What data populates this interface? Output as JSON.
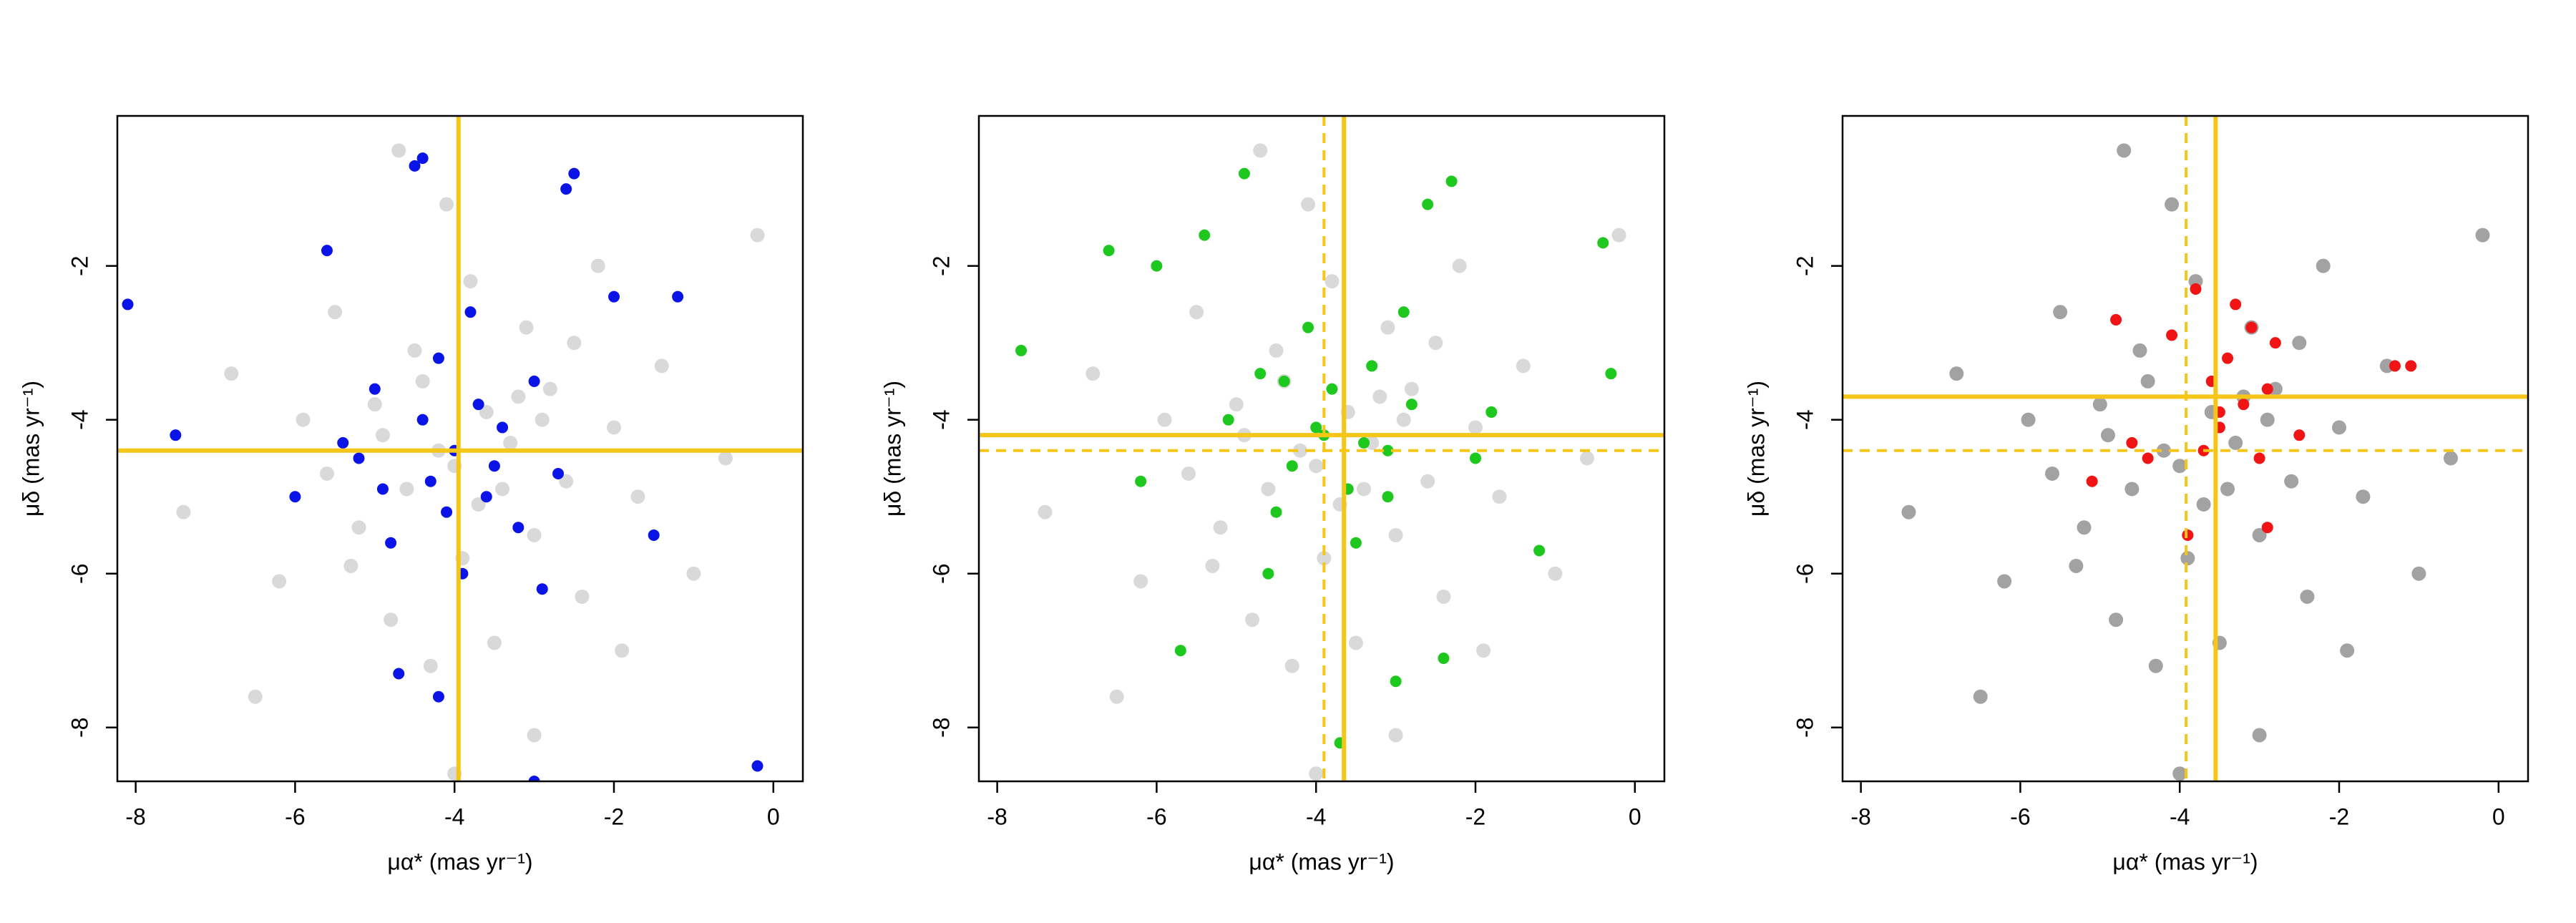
{
  "chart_data": [
    {
      "type": "scatter",
      "xlabel": "μα* (mas yr⁻¹)",
      "ylabel": "μδ (mas yr⁻¹)",
      "xlim": [
        -8.23,
        0.37
      ],
      "ylim": [
        -8.7,
        -0.05
      ],
      "xticks": [
        -8,
        -6,
        -4,
        -2,
        0
      ],
      "yticks": [
        -8,
        -6,
        -4,
        -2
      ],
      "series": [
        {
          "color": "#808080",
          "opacity": 0.3,
          "x": [
            -7.4,
            -6.8,
            -6.2,
            -5.9,
            -5.5,
            -5.2,
            -5.0,
            -4.8,
            -4.6,
            -4.5,
            -4.3,
            -4.1,
            -4.0,
            -3.9,
            -3.8,
            -3.6,
            -3.5,
            -3.3,
            -3.1,
            -3.0,
            -2.8,
            -2.6,
            -2.4,
            -2.2,
            -2.0,
            -1.7,
            -1.4,
            -1.0,
            -0.6,
            -0.2,
            -5.6,
            -4.9,
            -4.4,
            -3.7,
            -3.2,
            -2.9,
            -4.2,
            -3.4,
            -5.3,
            -2.5,
            -6.5,
            -1.9,
            -4.7,
            -3.0,
            -4.0
          ],
          "y": [
            -5.2,
            -3.4,
            -6.1,
            -4.0,
            -2.6,
            -5.4,
            -3.8,
            -6.6,
            -4.9,
            -3.1,
            -7.2,
            -1.2,
            -4.6,
            -5.8,
            -2.2,
            -3.9,
            -6.9,
            -4.3,
            -2.8,
            -5.5,
            -3.6,
            -4.8,
            -6.3,
            -2.0,
            -4.1,
            -5.0,
            -3.3,
            -6.0,
            -4.5,
            -1.6,
            -4.7,
            -4.2,
            -3.5,
            -5.1,
            -3.7,
            -4.0,
            -4.4,
            -4.9,
            -5.9,
            -3.0,
            -7.6,
            -7.0,
            -0.5,
            -8.1,
            -8.6
          ]
        },
        {
          "color": "#0a14e6",
          "opacity": 1,
          "x": [
            -8.1,
            -7.5,
            -6.0,
            -5.6,
            -5.2,
            -5.0,
            -4.8,
            -4.7,
            -4.5,
            -4.4,
            -4.3,
            -4.2,
            -4.1,
            -4.0,
            -3.9,
            -3.8,
            -3.7,
            -3.6,
            -3.5,
            -3.4,
            -3.2,
            -3.0,
            -2.9,
            -2.7,
            -2.5,
            -2.0,
            -1.5,
            -1.2,
            -4.4,
            -4.2,
            -2.6,
            -0.2,
            -3.0,
            -4.9,
            -5.4
          ],
          "y": [
            -2.5,
            -4.2,
            -5.0,
            -1.8,
            -4.5,
            -3.6,
            -5.6,
            -7.3,
            -0.7,
            -4.0,
            -4.8,
            -3.2,
            -5.2,
            -4.4,
            -6.0,
            -2.6,
            -3.8,
            -5.0,
            -4.6,
            -4.1,
            -5.4,
            -3.5,
            -6.2,
            -4.7,
            -0.8,
            -2.4,
            -5.5,
            -2.4,
            -0.6,
            -7.6,
            -1.0,
            -8.5,
            -8.7,
            -4.9,
            -4.3
          ]
        }
      ],
      "reference_lines": [
        {
          "orientation": "vertical",
          "value": -3.95,
          "style": "solid",
          "color": "#f5c518"
        },
        {
          "orientation": "horizontal",
          "value": -4.4,
          "style": "solid",
          "color": "#f5c518"
        }
      ]
    },
    {
      "type": "scatter",
      "xlabel": "μα* (mas yr⁻¹)",
      "ylabel": "μδ (mas yr⁻¹)",
      "xlim": [
        -8.23,
        0.37
      ],
      "ylim": [
        -8.7,
        -0.05
      ],
      "xticks": [
        -8,
        -6,
        -4,
        -2,
        0
      ],
      "yticks": [
        -8,
        -6,
        -4,
        -2
      ],
      "series": [
        {
          "color": "#808080",
          "opacity": 0.3,
          "x": [
            -7.4,
            -6.8,
            -6.2,
            -5.9,
            -5.5,
            -5.2,
            -5.0,
            -4.8,
            -4.6,
            -4.5,
            -4.3,
            -4.1,
            -4.0,
            -3.9,
            -3.8,
            -3.6,
            -3.5,
            -3.3,
            -3.1,
            -3.0,
            -2.8,
            -2.6,
            -2.4,
            -2.2,
            -2.0,
            -1.7,
            -1.4,
            -1.0,
            -0.6,
            -0.2,
            -5.6,
            -4.9,
            -4.4,
            -3.7,
            -3.2,
            -2.9,
            -4.2,
            -3.4,
            -5.3,
            -2.5,
            -6.5,
            -1.9,
            -4.7,
            -3.0,
            -4.0
          ],
          "y": [
            -5.2,
            -3.4,
            -6.1,
            -4.0,
            -2.6,
            -5.4,
            -3.8,
            -6.6,
            -4.9,
            -3.1,
            -7.2,
            -1.2,
            -4.6,
            -5.8,
            -2.2,
            -3.9,
            -6.9,
            -4.3,
            -2.8,
            -5.5,
            -3.6,
            -4.8,
            -6.3,
            -2.0,
            -4.1,
            -5.0,
            -3.3,
            -6.0,
            -4.5,
            -1.6,
            -4.7,
            -4.2,
            -3.5,
            -5.1,
            -3.7,
            -4.0,
            -4.4,
            -4.9,
            -5.9,
            -3.0,
            -7.6,
            -7.0,
            -0.5,
            -8.1,
            -8.6
          ]
        },
        {
          "color": "#1ec81e",
          "opacity": 1,
          "x": [
            -7.7,
            -6.6,
            -6.0,
            -5.4,
            -5.1,
            -4.9,
            -4.7,
            -4.5,
            -4.3,
            -4.1,
            -4.0,
            -3.8,
            -3.6,
            -3.5,
            -3.3,
            -3.1,
            -3.0,
            -2.8,
            -2.6,
            -2.3,
            -2.0,
            -1.8,
            -1.2,
            -0.4,
            -0.3,
            -3.7,
            -3.1,
            -5.7,
            -4.6,
            -2.4,
            -6.2,
            -3.9,
            -4.4,
            -3.4,
            -2.9
          ],
          "y": [
            -3.1,
            -1.8,
            -2.0,
            -1.6,
            -4.0,
            -0.8,
            -3.4,
            -5.2,
            -4.6,
            -2.8,
            -4.1,
            -3.6,
            -4.9,
            -5.6,
            -3.3,
            -4.4,
            -7.4,
            -3.8,
            -1.2,
            -0.9,
            -4.5,
            -3.9,
            -5.7,
            -1.7,
            -3.4,
            -8.2,
            -5.0,
            -7.0,
            -6.0,
            -7.1,
            -4.8,
            -4.2,
            -3.5,
            -4.3,
            -2.6
          ]
        }
      ],
      "reference_lines": [
        {
          "orientation": "vertical",
          "value": -3.9,
          "style": "dashed",
          "color": "#f5c518"
        },
        {
          "orientation": "horizontal",
          "value": -4.4,
          "style": "dashed",
          "color": "#f5c518"
        },
        {
          "orientation": "vertical",
          "value": -3.65,
          "style": "solid",
          "color": "#f5c518"
        },
        {
          "orientation": "horizontal",
          "value": -4.2,
          "style": "solid",
          "color": "#f5c518"
        }
      ]
    },
    {
      "type": "scatter",
      "xlabel": "μα* (mas yr⁻¹)",
      "ylabel": "μδ (mas yr⁻¹)",
      "xlim": [
        -8.23,
        0.37
      ],
      "ylim": [
        -8.7,
        -0.05
      ],
      "xticks": [
        -8,
        -6,
        -4,
        -2,
        0
      ],
      "yticks": [
        -8,
        -6,
        -4,
        -2
      ],
      "series": [
        {
          "color": "#303030",
          "opacity": 0.45,
          "x": [
            -7.4,
            -6.8,
            -6.2,
            -5.9,
            -5.5,
            -5.2,
            -5.0,
            -4.8,
            -4.6,
            -4.5,
            -4.3,
            -4.1,
            -4.0,
            -3.9,
            -3.8,
            -3.6,
            -3.5,
            -3.3,
            -3.1,
            -3.0,
            -2.8,
            -2.6,
            -2.4,
            -2.2,
            -2.0,
            -1.7,
            -1.4,
            -1.0,
            -0.6,
            -0.2,
            -5.6,
            -4.9,
            -4.4,
            -3.7,
            -3.2,
            -2.9,
            -4.2,
            -3.4,
            -5.3,
            -2.5,
            -6.5,
            -1.9,
            -4.7,
            -3.0,
            -4.0
          ],
          "y": [
            -5.2,
            -3.4,
            -6.1,
            -4.0,
            -2.6,
            -5.4,
            -3.8,
            -6.6,
            -4.9,
            -3.1,
            -7.2,
            -1.2,
            -4.6,
            -5.8,
            -2.2,
            -3.9,
            -6.9,
            -4.3,
            -2.8,
            -5.5,
            -3.6,
            -4.8,
            -6.3,
            -2.0,
            -4.1,
            -5.0,
            -3.3,
            -6.0,
            -4.5,
            -1.6,
            -4.7,
            -4.2,
            -3.5,
            -5.1,
            -3.7,
            -4.0,
            -4.4,
            -4.9,
            -5.9,
            -3.0,
            -7.6,
            -7.0,
            -0.5,
            -8.1,
            -8.6
          ]
        },
        {
          "color": "#f01414",
          "opacity": 1,
          "x": [
            -5.1,
            -4.8,
            -4.4,
            -4.1,
            -3.9,
            -3.8,
            -3.6,
            -3.5,
            -3.4,
            -3.3,
            -3.2,
            -3.0,
            -2.9,
            -2.8,
            -2.5,
            -1.3,
            -1.1,
            -3.7,
            -3.1,
            -4.6,
            -3.5,
            -2.9
          ],
          "y": [
            -4.8,
            -2.7,
            -4.5,
            -2.9,
            -5.5,
            -2.3,
            -3.5,
            -4.1,
            -3.2,
            -2.5,
            -3.8,
            -4.5,
            -5.4,
            -3.0,
            -4.2,
            -3.3,
            -3.3,
            -4.4,
            -2.8,
            -4.3,
            -3.9,
            -3.6
          ]
        }
      ],
      "reference_lines": [
        {
          "orientation": "vertical",
          "value": -3.92,
          "style": "dashed",
          "color": "#f5c518"
        },
        {
          "orientation": "horizontal",
          "value": -4.4,
          "style": "dashed",
          "color": "#f5c518"
        },
        {
          "orientation": "vertical",
          "value": -3.55,
          "style": "solid",
          "color": "#f5c518"
        },
        {
          "orientation": "horizontal",
          "value": -3.7,
          "style": "solid",
          "color": "#f5c518"
        }
      ]
    }
  ]
}
